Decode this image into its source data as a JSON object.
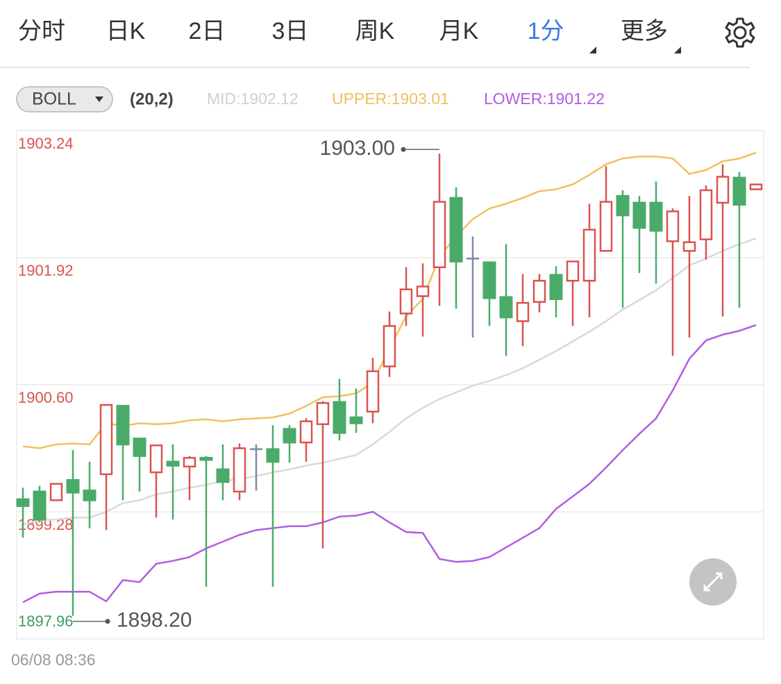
{
  "tabs": [
    "分时",
    "日K",
    "2日",
    "3日",
    "周K",
    "月K",
    "1分",
    "更多"
  ],
  "indicator": {
    "name": "BOLL",
    "params": "(20,2)",
    "mid": "MID:1902.12",
    "upper": "UPPER:1903.01",
    "lower": "LOWER:1901.22"
  },
  "chart_data": {
    "type": "candlestick",
    "start_time": "06/08 08:36",
    "ylim": [
      1897.96,
      1903.24
    ],
    "yticks": [
      1903.24,
      1901.92,
      {
        "value": 1900.6,
        "label": "1900.60"
      },
      1899.28,
      1897.96
    ],
    "ytick_colors": [
      "#d9534f",
      "#d9534f",
      "#d9534f",
      "#d9534f",
      "#3f9d5c"
    ],
    "grid": true,
    "up_color": "#d9534f",
    "down_color": "#4aaa6a",
    "flat_color": "#7c8aa3",
    "open": [
      1899.42,
      1899.5,
      1899.4,
      1899.62,
      1899.51,
      1899.67,
      1900.39,
      1900.05,
      1899.69,
      1899.81,
      1899.75,
      1899.85,
      1899.73,
      1899.49,
      1899.93,
      1899.94,
      1900.15,
      1900.0,
      1900.19,
      1900.43,
      1900.27,
      1900.32,
      1900.79,
      1901.34,
      1901.52,
      1901.82,
      1902.55,
      1901.91,
      1901.88,
      1901.52,
      1901.26,
      1901.46,
      1901.75,
      1901.68,
      1901.68,
      1901.99,
      1902.57,
      1902.5,
      1902.5,
      1902.09,
      1901.99,
      1902.11,
      1902.49,
      1902.76,
      1902.63
    ],
    "high": [
      1899.53,
      1899.55,
      1899.57,
      1899.92,
      1899.8,
      1900.39,
      1900.39,
      1900.05,
      1899.97,
      1899.98,
      1899.86,
      1899.86,
      1899.98,
      1899.99,
      1899.98,
      1900.18,
      1900.18,
      1900.25,
      1900.43,
      1900.66,
      1900.56,
      1900.88,
      1901.36,
      1901.82,
      1901.86,
      1903.0,
      1902.65,
      1902.14,
      1901.88,
      1902.06,
      1901.75,
      1901.75,
      1901.83,
      1901.88,
      1902.48,
      1902.87,
      1902.62,
      1902.56,
      1902.71,
      1902.43,
      1902.56,
      1902.67,
      1902.89,
      1902.81,
      1902.68
    ],
    "low": [
      1899.01,
      1899.17,
      1899.4,
      1898.2,
      1899.11,
      1899.09,
      1899.4,
      1899.49,
      1899.22,
      1899.2,
      1899.4,
      1898.5,
      1899.4,
      1899.4,
      1899.5,
      1898.5,
      1899.79,
      1899.8,
      1898.9,
      1900.02,
      1900.1,
      1900.2,
      1900.68,
      1901.21,
      1901.1,
      1901.42,
      1901.39,
      1901.09,
      1901.21,
      1900.9,
      1901.0,
      1901.35,
      1901.3,
      1901.21,
      1901.3,
      1901.99,
      1901.4,
      1901.76,
      1901.65,
      1900.9,
      1901.09,
      1901.9,
      1901.31,
      1901.4,
      1902.63
    ],
    "close": [
      1899.33,
      1899.19,
      1899.57,
      1899.47,
      1899.39,
      1900.39,
      1899.97,
      1899.85,
      1899.97,
      1899.75,
      1899.84,
      1899.81,
      1899.58,
      1899.94,
      1899.93,
      1899.79,
      1899.99,
      1900.22,
      1900.41,
      1900.09,
      1900.19,
      1900.74,
      1901.21,
      1901.59,
      1901.62,
      1902.5,
      1901.87,
      1901.91,
      1901.49,
      1901.29,
      1901.45,
      1901.68,
      1901.48,
      1901.88,
      1902.21,
      1902.5,
      1902.35,
      1902.22,
      1902.19,
      1902.4,
      1902.08,
      1902.62,
      1902.76,
      1902.46,
      1902.68
    ],
    "bands": [
      {
        "color": "#f0c060",
        "values": [
          1899.96,
          1899.94,
          1899.98,
          1899.99,
          1899.98,
          1900.2,
          1900.17,
          1900.2,
          1900.19,
          1900.2,
          1900.23,
          1900.24,
          1900.22,
          1900.24,
          1900.25,
          1900.26,
          1900.3,
          1900.38,
          1900.47,
          1900.48,
          1900.51,
          1900.62,
          1900.98,
          1901.31,
          1901.49,
          1901.93,
          1902.14,
          1902.32,
          1902.43,
          1902.48,
          1902.54,
          1902.61,
          1902.63,
          1902.68,
          1902.78,
          1902.89,
          1902.95,
          1902.97,
          1902.97,
          1902.95,
          1902.79,
          1902.83,
          1902.92,
          1902.95,
          1903.01
        ]
      },
      {
        "color": "#d9d9d9",
        "values": [
          1899.15,
          1899.19,
          1899.2,
          1899.22,
          1899.22,
          1899.28,
          1899.37,
          1899.4,
          1899.46,
          1899.49,
          1899.53,
          1899.56,
          1899.6,
          1899.62,
          1899.65,
          1899.69,
          1899.72,
          1899.76,
          1899.79,
          1899.83,
          1899.87,
          1899.98,
          1900.11,
          1900.25,
          1900.36,
          1900.45,
          1900.52,
          1900.59,
          1900.64,
          1900.7,
          1900.77,
          1900.86,
          1900.95,
          1901.05,
          1901.15,
          1901.26,
          1901.38,
          1901.48,
          1901.58,
          1901.71,
          1901.84,
          1901.91,
          1901.99,
          1902.06,
          1902.12
        ]
      },
      {
        "color": "#b05de0",
        "values": [
          1898.34,
          1898.43,
          1898.45,
          1898.45,
          1898.45,
          1898.35,
          1898.57,
          1898.55,
          1898.74,
          1898.77,
          1898.81,
          1898.9,
          1898.97,
          1899.04,
          1899.09,
          1899.11,
          1899.13,
          1899.13,
          1899.17,
          1899.23,
          1899.24,
          1899.28,
          1899.17,
          1899.07,
          1899.06,
          1898.79,
          1898.76,
          1898.77,
          1898.81,
          1898.91,
          1899.01,
          1899.11,
          1899.31,
          1899.44,
          1899.57,
          1899.74,
          1899.92,
          1900.09,
          1900.25,
          1900.54,
          1900.87,
          1901.06,
          1901.12,
          1901.16,
          1901.22
        ]
      }
    ],
    "high_marker": {
      "value": 1903.0,
      "label": "1903.00"
    },
    "low_marker": {
      "value": 1898.2,
      "label": "1898.20"
    }
  }
}
